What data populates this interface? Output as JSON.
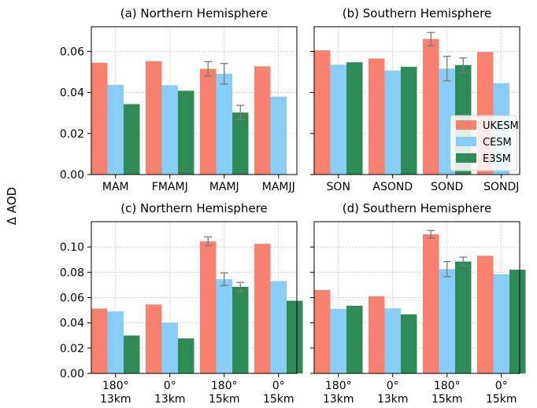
{
  "figure": {
    "ylabel": "Δ AOD",
    "colors": {
      "UKESM": "#f7806f",
      "CESM": "#88cdf6",
      "E3SM": "#2e8b57"
    },
    "legend": {
      "placement": "right-middle of panel (b)",
      "entries": [
        "UKESM",
        "CESM",
        "E3SM"
      ]
    }
  },
  "chart_data": [
    {
      "type": "bar",
      "panel": "a",
      "title": "(a) Northern Hemisphere",
      "categories": [
        "MAM",
        "FMAMJ",
        "MAMJ",
        "MAMJJ"
      ],
      "ylim": [
        0,
        0.072
      ],
      "yticks": [
        "0.00",
        "0.02",
        "0.04",
        "0.06"
      ],
      "grid": true,
      "series": [
        {
          "name": "UKESM",
          "values": [
            0.0545,
            0.0552,
            0.0515,
            0.0527
          ],
          "errors": [
            null,
            null,
            0.0035,
            null
          ]
        },
        {
          "name": "CESM",
          "values": [
            0.0437,
            0.0435,
            0.0491,
            0.0379
          ],
          "errors": [
            null,
            null,
            0.005,
            null
          ]
        },
        {
          "name": "E3SM",
          "values": [
            0.0343,
            0.0408,
            0.0302,
            null
          ],
          "errors": [
            null,
            null,
            0.0035,
            null
          ]
        }
      ]
    },
    {
      "type": "bar",
      "panel": "b",
      "title": "(b) Southern Hemisphere",
      "categories": [
        "SON",
        "ASOND",
        "SOND",
        "SONDJ"
      ],
      "ylim": [
        0,
        0.072
      ],
      "yticks": [],
      "grid": true,
      "series": [
        {
          "name": "UKESM",
          "values": [
            0.0605,
            0.0565,
            0.066,
            0.0597
          ],
          "errors": [
            null,
            null,
            0.0032,
            null
          ]
        },
        {
          "name": "CESM",
          "values": [
            0.0535,
            0.0507,
            0.0516,
            0.0445
          ],
          "errors": [
            null,
            null,
            0.006,
            null
          ]
        },
        {
          "name": "E3SM",
          "values": [
            0.0547,
            0.0525,
            0.0533,
            null
          ],
          "errors": [
            null,
            null,
            0.0035,
            null
          ]
        }
      ]
    },
    {
      "type": "bar",
      "panel": "c",
      "title": "(c) Northern Hemisphere",
      "categories": [
        [
          "180°",
          "13km"
        ],
        [
          "0°",
          "13km"
        ],
        [
          "180°",
          "15km"
        ],
        [
          "0°",
          "15km"
        ]
      ],
      "ylim": [
        0,
        0.12
      ],
      "yticks": [
        "0.00",
        "0.02",
        "0.04",
        "0.06",
        "0.08",
        "0.10"
      ],
      "grid": true,
      "series": [
        {
          "name": "UKESM",
          "values": [
            0.0513,
            0.0545,
            0.1045,
            0.1025
          ],
          "errors": [
            null,
            null,
            0.0035,
            null
          ]
        },
        {
          "name": "CESM",
          "values": [
            0.049,
            0.0402,
            0.0745,
            0.073
          ],
          "errors": [
            null,
            null,
            0.005,
            null
          ]
        },
        {
          "name": "E3SM",
          "values": [
            0.03,
            0.0277,
            0.0685,
            0.0575
          ],
          "errors": [
            null,
            null,
            0.0035,
            null
          ]
        }
      ]
    },
    {
      "type": "bar",
      "panel": "d",
      "title": "(d) Southern Hemisphere",
      "categories": [
        [
          "180°",
          "13km"
        ],
        [
          "0°",
          "13km"
        ],
        [
          "180°",
          "15km"
        ],
        [
          "0°",
          "15km"
        ]
      ],
      "ylim": [
        0,
        0.12
      ],
      "yticks": [],
      "grid": true,
      "series": [
        {
          "name": "UKESM",
          "values": [
            0.066,
            0.061,
            0.11,
            0.093
          ],
          "errors": [
            null,
            null,
            0.003,
            null
          ]
        },
        {
          "name": "CESM",
          "values": [
            0.051,
            0.0515,
            0.0825,
            0.0785
          ],
          "errors": [
            null,
            null,
            0.006,
            null
          ]
        },
        {
          "name": "E3SM",
          "values": [
            0.0535,
            0.0467,
            0.0885,
            0.082
          ],
          "errors": [
            null,
            null,
            0.0035,
            null
          ]
        }
      ]
    }
  ]
}
